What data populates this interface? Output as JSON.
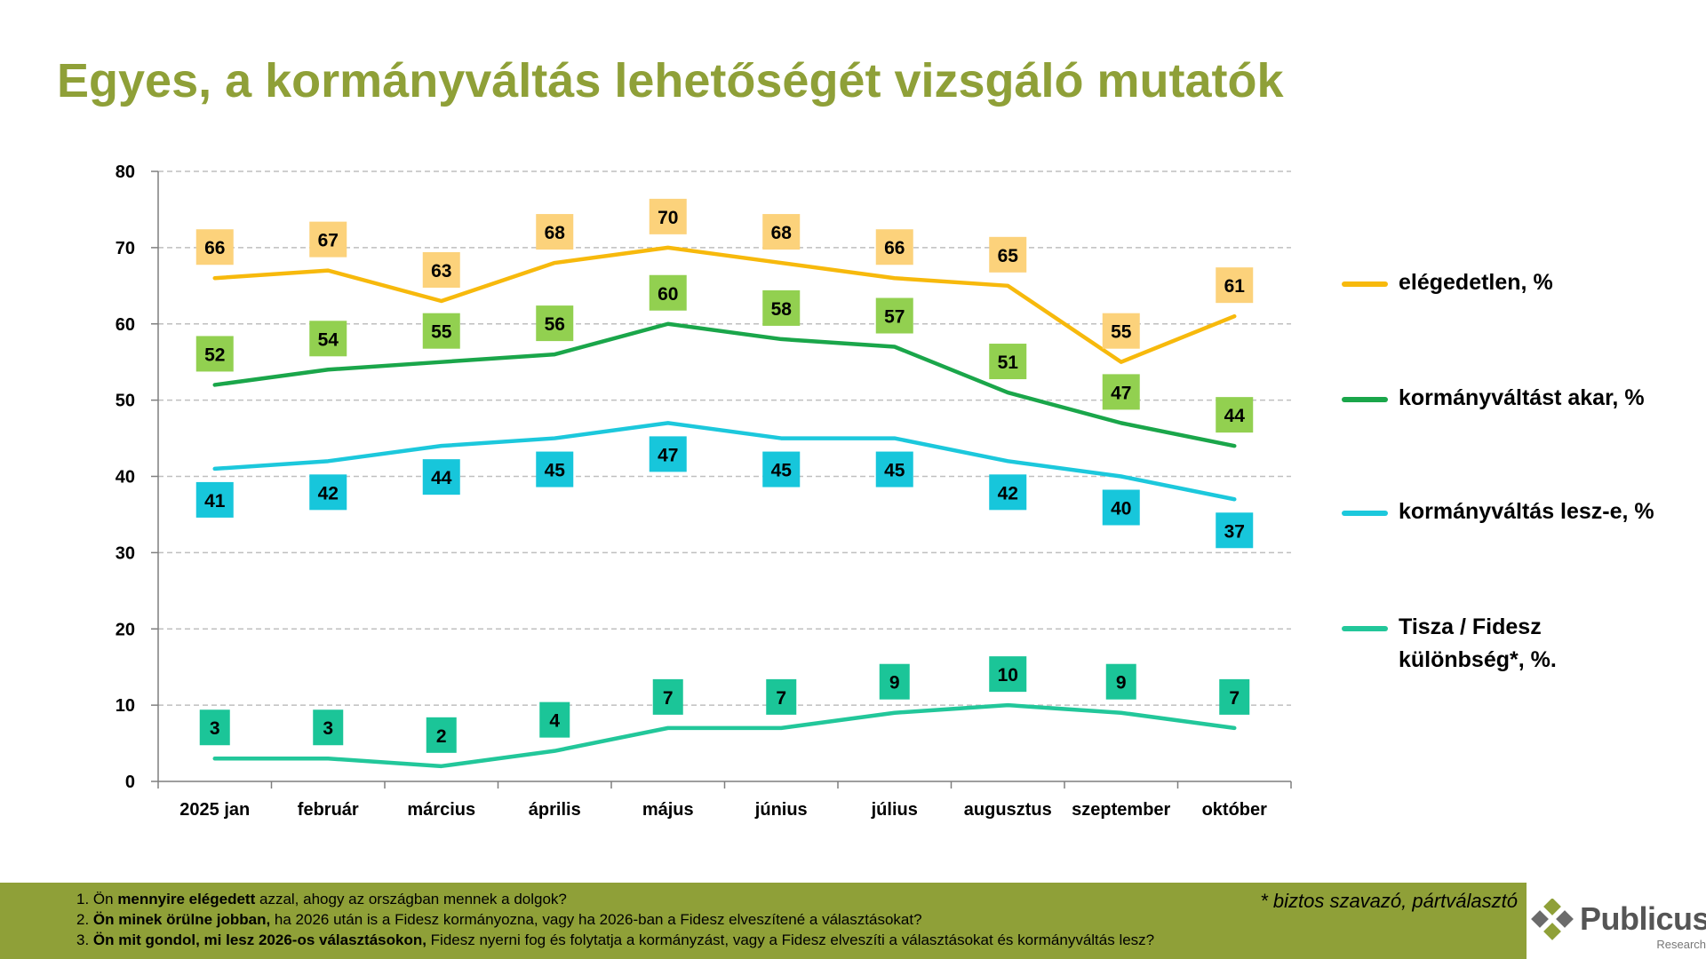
{
  "title": "Egyes, a kormányváltás lehetőségét vizsgáló mutatók",
  "chart_data": {
    "type": "line",
    "categories": [
      "2025 jan",
      "február",
      "március",
      "április",
      "május",
      "június",
      "július",
      "augusztus",
      "szeptember",
      "október"
    ],
    "ylim": [
      0,
      80
    ],
    "yticks": [
      "0",
      "10",
      "20",
      "30",
      "40",
      "50",
      "60",
      "70",
      "80"
    ],
    "grid": true,
    "legend_position": "right",
    "series": [
      {
        "name": "elégedetlen, %",
        "color": "#f7b90c",
        "label_bg": "#fcd27b",
        "values": [
          66,
          67,
          63,
          68,
          70,
          68,
          66,
          65,
          55,
          61
        ]
      },
      {
        "name": "kormányváltást akar, %",
        "color": "#1aa64a",
        "label_bg": "#92d050",
        "values": [
          52,
          54,
          55,
          56,
          60,
          58,
          57,
          51,
          47,
          44
        ]
      },
      {
        "name": "kormányváltás lesz-e, %",
        "color": "#1cc8dc",
        "label_bg": "#17c6db",
        "values": [
          41,
          42,
          44,
          45,
          47,
          45,
          45,
          42,
          40,
          37
        ]
      },
      {
        "name": "Tisza / Fidesz különbség*, %.",
        "color": "#22c79a",
        "label_bg": "#1bc598",
        "values": [
          3,
          3,
          2,
          4,
          7,
          7,
          9,
          10,
          9,
          7
        ]
      }
    ]
  },
  "legend": [
    {
      "text": "elégedetlen, %",
      "color": "#f7b90c"
    },
    {
      "text": "kormányváltást akar, %",
      "color": "#1aa64a"
    },
    {
      "text": "kormányváltás lesz-e, %",
      "color": "#1cc8dc"
    },
    {
      "text": "Tisza / Fidesz különbség*, %.",
      "color": "#22c79a"
    }
  ],
  "footer": {
    "questions": [
      {
        "prefix": "1. Ön ",
        "bold": "mennyire elégedett",
        "rest": " azzal, ahogy az országban mennek a dolgok?"
      },
      {
        "prefix": "2. ",
        "bold": "Ön minek örülne jobban,",
        "rest": " ha 2026 után is a Fidesz kormányozna, vagy ha 2026-ban a Fidesz elveszítené a választásokat?"
      },
      {
        "prefix": "3. ",
        "bold": "Ön mit gondol, mi lesz 2026-os választásokon,",
        "rest": " Fidesz nyerni fog és folytatja a kormányzást, vagy a Fidesz elveszíti a választásokat és kormányváltás lesz?"
      }
    ],
    "footnote": "* biztos szavazó, pártválasztó"
  },
  "logo": {
    "name": "Publicus",
    "subtitle": "Research"
  }
}
